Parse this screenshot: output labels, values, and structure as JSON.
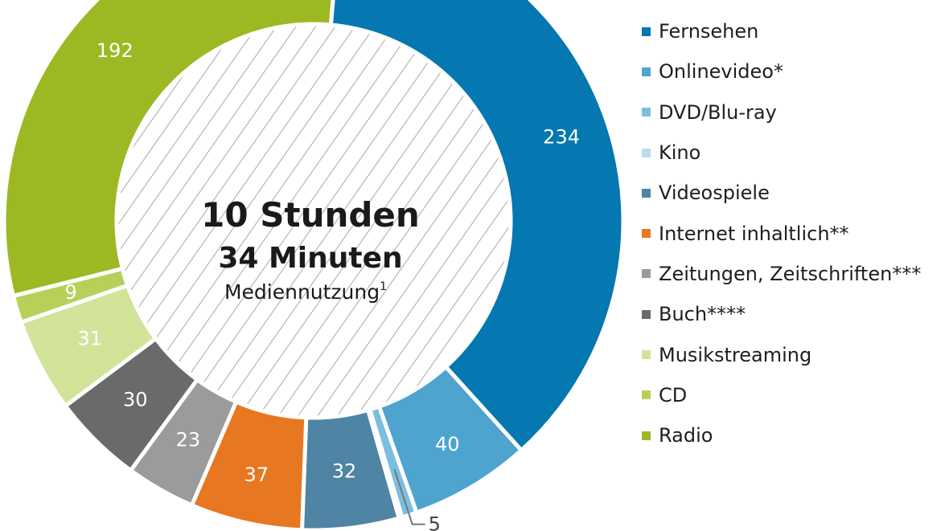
{
  "chart_data": {
    "type": "pie",
    "center": {
      "line1": "10 Stunden",
      "line2": "34 Minuten",
      "line3": "Mediennutzung",
      "footnote": "1"
    },
    "slices": [
      {
        "name": "Fernsehen",
        "value": 234,
        "label": "234",
        "color": "#0577b1"
      },
      {
        "name": "Onlinevideo*",
        "value": 40,
        "label": "40",
        "color": "#4ea4cf"
      },
      {
        "name": "DVD/Blu-ray",
        "value": 5,
        "label": "5",
        "color": "#7bbfe0"
      },
      {
        "name": "Kino",
        "value": 1,
        "label": "",
        "color": "#b9dcee"
      },
      {
        "name": "Videospiele",
        "value": 32,
        "label": "32",
        "color": "#4f84a4"
      },
      {
        "name": "Internet inhaltlich**",
        "value": 37,
        "label": "37",
        "color": "#e87722"
      },
      {
        "name": "Zeitungen, Zeitschriften***",
        "value": 23,
        "label": "23",
        "color": "#9b9b9b"
      },
      {
        "name": "Buch****",
        "value": 30,
        "label": "30",
        "color": "#6a6a6a"
      },
      {
        "name": "Musikstreaming",
        "value": 31,
        "label": "31",
        "color": "#d2e39a"
      },
      {
        "name": "CD",
        "value": 9,
        "label": "9",
        "color": "#b8d05a"
      },
      {
        "name": "Radio",
        "value": 192,
        "label": "192",
        "color": "#9cb924"
      }
    ]
  }
}
